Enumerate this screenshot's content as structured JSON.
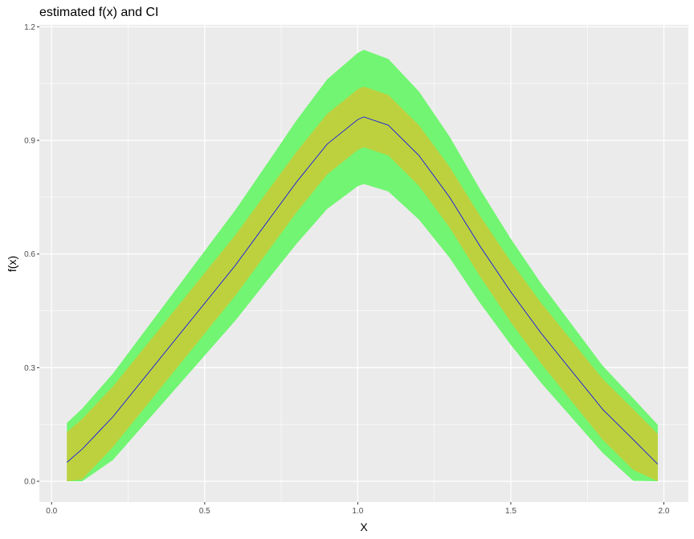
{
  "chart_data": {
    "type": "area",
    "title": "estimated f(x) and CI",
    "xlabel": "X",
    "ylabel": "f(x)",
    "xlim": [
      -0.04,
      2.08
    ],
    "ylim": [
      -0.055,
      1.205
    ],
    "x_ticks": [
      "0.0",
      "0.5",
      "1.0",
      "1.5",
      "2.0"
    ],
    "y_ticks": [
      "0.0",
      "0.3",
      "0.6",
      "0.9",
      "1.2"
    ],
    "grid": true,
    "colors": {
      "panel": "#EBEBEB",
      "outer_band": "#72F572",
      "inner_band": "#BDD13F",
      "line": "#0000FF"
    },
    "x": [
      0.05,
      0.1,
      0.2,
      0.3,
      0.4,
      0.5,
      0.6,
      0.7,
      0.8,
      0.9,
      1.0,
      1.02,
      1.1,
      1.2,
      1.3,
      1.4,
      1.5,
      1.6,
      1.7,
      1.8,
      1.9,
      1.98
    ],
    "series": [
      {
        "role": "estimate",
        "values": [
          0.05,
          0.085,
          0.17,
          0.27,
          0.37,
          0.47,
          0.57,
          0.68,
          0.79,
          0.89,
          0.955,
          0.962,
          0.94,
          0.86,
          0.75,
          0.62,
          0.5,
          0.39,
          0.29,
          0.19,
          0.11,
          0.045
        ]
      },
      {
        "role": "inner_lower",
        "values": [
          0,
          0.005,
          0.09,
          0.19,
          0.29,
          0.39,
          0.49,
          0.6,
          0.71,
          0.81,
          0.875,
          0.882,
          0.86,
          0.78,
          0.67,
          0.54,
          0.42,
          0.31,
          0.21,
          0.11,
          0.03,
          0
        ]
      },
      {
        "role": "inner_upper",
        "values": [
          0.13,
          0.165,
          0.25,
          0.35,
          0.45,
          0.55,
          0.65,
          0.76,
          0.87,
          0.97,
          1.035,
          1.042,
          1.02,
          0.94,
          0.83,
          0.7,
          0.58,
          0.47,
          0.37,
          0.27,
          0.19,
          0.125
        ]
      },
      {
        "role": "outer_lower",
        "values": [
          0,
          0,
          0.056,
          0.148,
          0.24,
          0.332,
          0.424,
          0.526,
          0.627,
          0.719,
          0.779,
          0.785,
          0.765,
          0.691,
          0.59,
          0.47,
          0.36,
          0.259,
          0.167,
          0.075,
          0.001,
          0
        ]
      },
      {
        "role": "outer_upper",
        "values": [
          0.154,
          0.192,
          0.284,
          0.392,
          0.5,
          0.608,
          0.716,
          0.834,
          0.953,
          1.061,
          1.131,
          1.139,
          1.115,
          1.029,
          0.91,
          0.77,
          0.64,
          0.521,
          0.413,
          0.305,
          0.219,
          0.149
        ]
      }
    ]
  }
}
